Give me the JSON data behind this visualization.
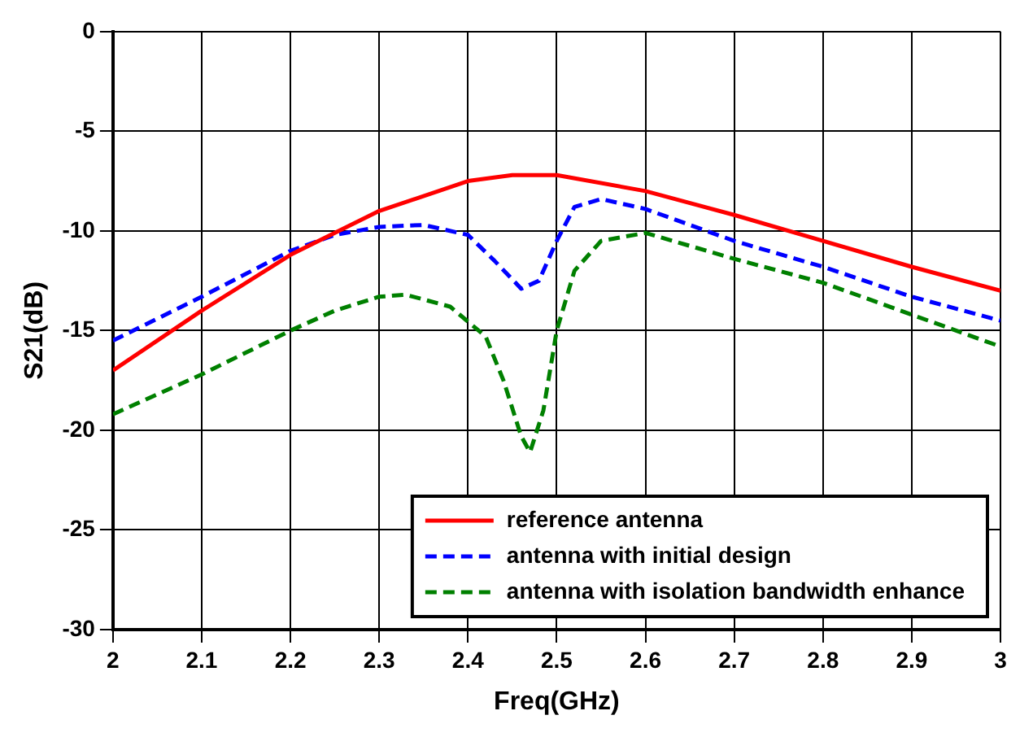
{
  "chart_data": {
    "type": "line",
    "xlabel": "Freq(GHz)",
    "ylabel": "S21(dB)",
    "xlim": [
      2,
      3
    ],
    "xticks": [
      2,
      2.1,
      2.2,
      2.3,
      2.4,
      2.5,
      2.6,
      2.7,
      2.8,
      2.9,
      3
    ],
    "ylim": [
      -30,
      0
    ],
    "yticks": [
      -30,
      -25,
      -20,
      -15,
      -10,
      -5,
      0
    ],
    "grid": true,
    "legend": "bottom right",
    "marker": "none",
    "series": [
      {
        "name": "reference antenna",
        "color": "#ff0000",
        "line_style": "solid",
        "x": [
          2,
          2.1,
          2.2,
          2.3,
          2.4,
          2.45,
          2.5,
          2.6,
          2.7,
          2.8,
          2.9,
          3
        ],
        "values": [
          -17,
          -14,
          -11.2,
          -9,
          -7.5,
          -7.2,
          -7.2,
          -8,
          -9.2,
          -10.5,
          -11.8,
          -13
        ]
      },
      {
        "name": "antenna with initial design",
        "color": "#0000ff",
        "line_style": "dashed",
        "x": [
          2,
          2.1,
          2.2,
          2.25,
          2.3,
          2.35,
          2.4,
          2.43,
          2.46,
          2.48,
          2.5,
          2.52,
          2.55,
          2.6,
          2.7,
          2.8,
          2.9,
          3
        ],
        "values": [
          -15.5,
          -13.3,
          -11,
          -10.2,
          -9.8,
          -9.7,
          -10.2,
          -11.5,
          -12.9,
          -12.5,
          -10.5,
          -8.8,
          -8.4,
          -8.9,
          -10.5,
          -11.8,
          -13.3,
          -14.5
        ]
      },
      {
        "name": "antenna with isolation bandwidth enhance",
        "color": "#008000",
        "line_style": "dashed",
        "x": [
          2,
          2.1,
          2.2,
          2.25,
          2.3,
          2.33,
          2.38,
          2.42,
          2.44,
          2.46,
          2.47,
          2.485,
          2.5,
          2.52,
          2.55,
          2.6,
          2.7,
          2.8,
          2.9,
          3
        ],
        "values": [
          -19.2,
          -17.2,
          -15,
          -14,
          -13.3,
          -13.2,
          -13.8,
          -15.3,
          -17.5,
          -20.3,
          -21.1,
          -19,
          -15,
          -12,
          -10.5,
          -10.1,
          -11.4,
          -12.6,
          -14.2,
          -15.8
        ]
      }
    ]
  }
}
